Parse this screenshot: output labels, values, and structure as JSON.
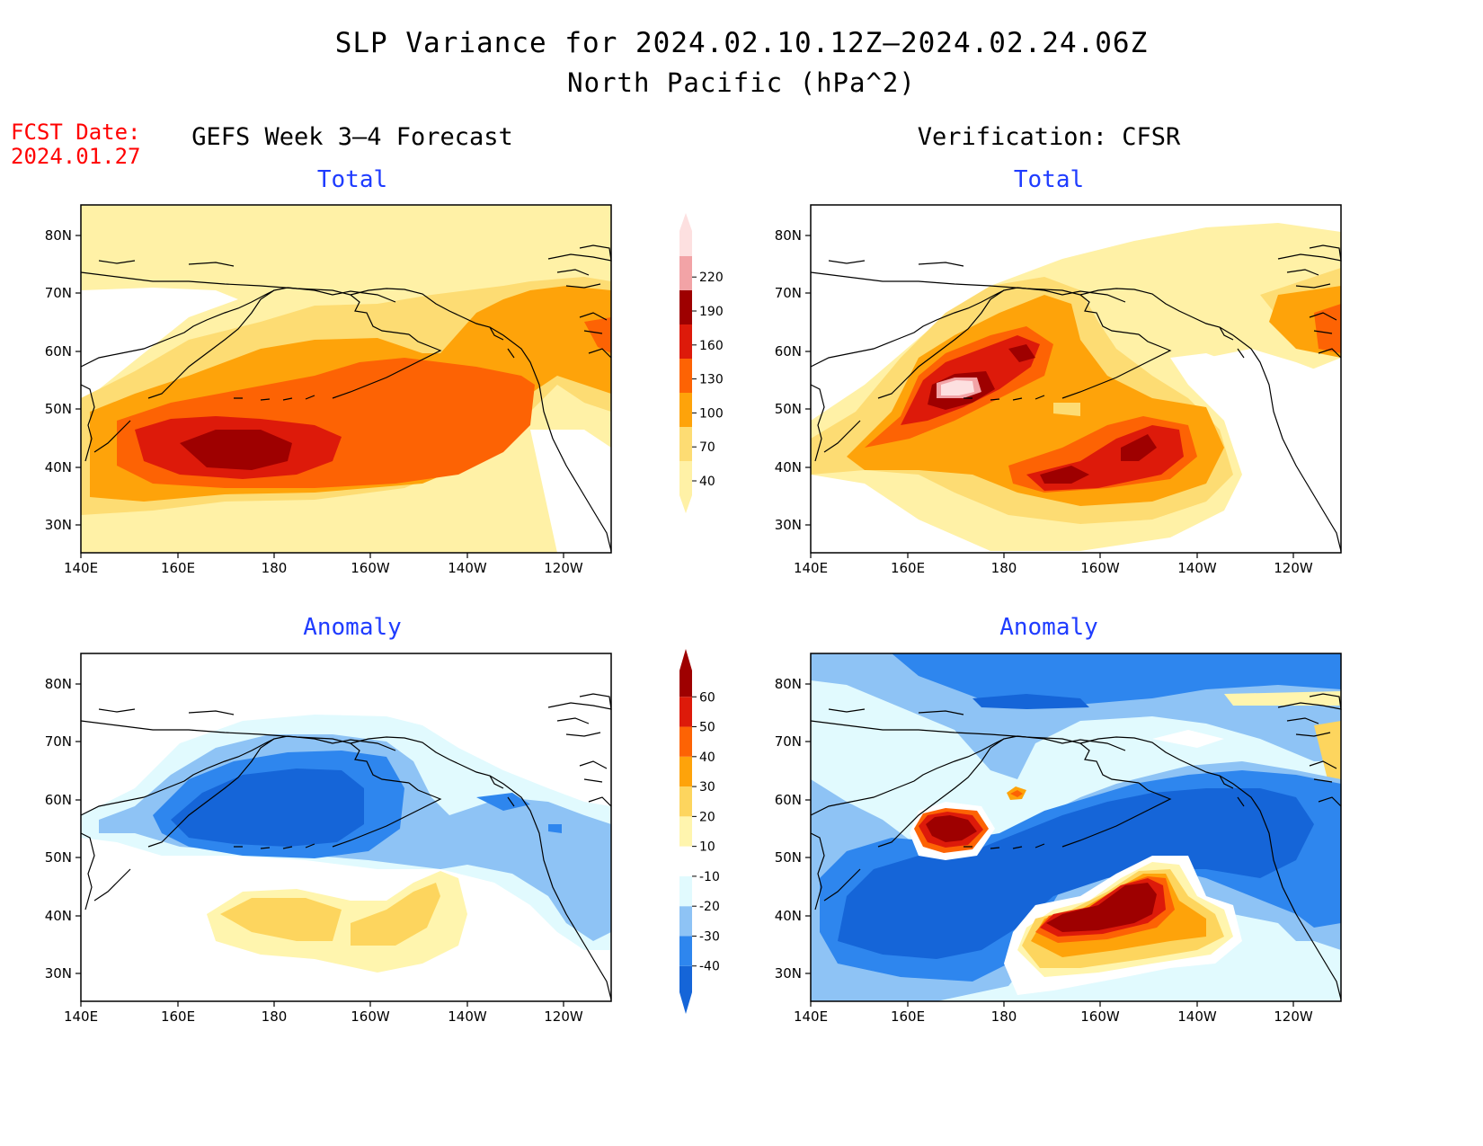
{
  "title": {
    "line1": "SLP Variance for 2024.02.10.12Z–2024.02.24.06Z",
    "line2": "North Pacific (hPa^2)"
  },
  "forecast_date": {
    "label": "FCST Date:",
    "value": "2024.01.27"
  },
  "columns": {
    "left": "GEFS Week 3–4 Forecast",
    "right": "Verification: CFSR"
  },
  "panels": {
    "top_left": {
      "title": "Total"
    },
    "top_right": {
      "title": "Total"
    },
    "bottom_left": {
      "title": "Anomaly"
    },
    "bottom_right": {
      "title": "Anomaly"
    }
  },
  "axes": {
    "lat_labels": [
      "80N",
      "70N",
      "60N",
      "50N",
      "40N",
      "30N"
    ],
    "lon_labels": [
      "140E",
      "160E",
      "180",
      "160W",
      "140W",
      "120W"
    ]
  },
  "colorbars": {
    "total": {
      "labels": [
        "40",
        "70",
        "100",
        "130",
        "160",
        "190",
        "220"
      ],
      "colors": [
        "#fff1a6",
        "#fddc73",
        "#fea30a",
        "#fd6304",
        "#dd1a0a",
        "#9e0000",
        "#f2a3a6",
        "#fde0e0"
      ]
    },
    "anomaly": {
      "labels": [
        "-40",
        "-30",
        "-20",
        "-10",
        "10",
        "20",
        "30",
        "40",
        "50",
        "60"
      ],
      "colors": [
        "#1565d8",
        "#2e86ee",
        "#8ec3f5",
        "#e1fafe",
        "#ffffff",
        "#fff5ae",
        "#fdd55e",
        "#fea30a",
        "#fd6304",
        "#dd1a0a",
        "#9e0000"
      ]
    }
  }
}
